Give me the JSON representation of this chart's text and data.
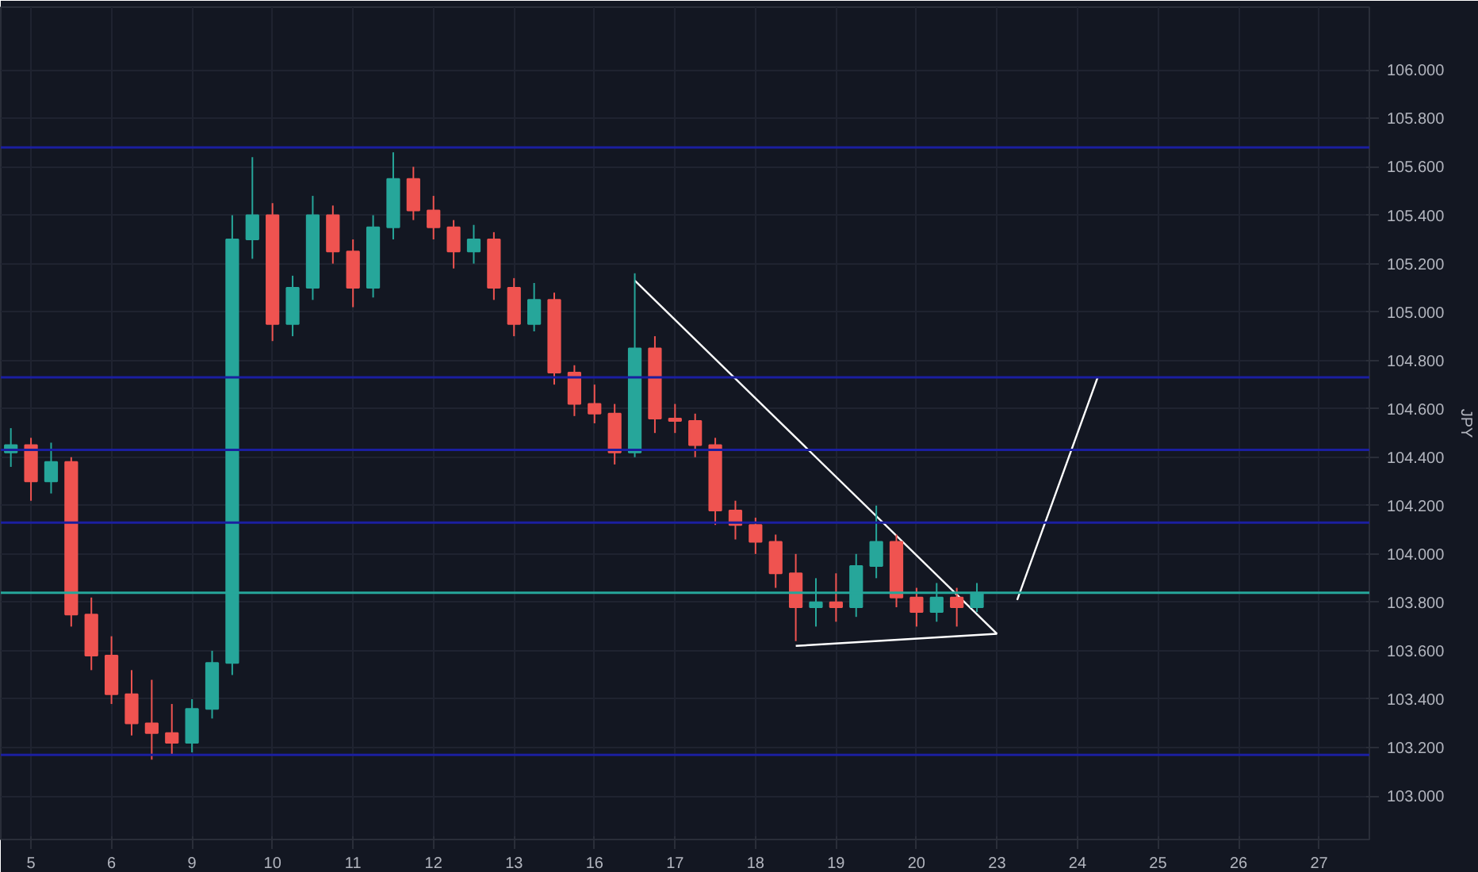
{
  "chart_data": {
    "type": "candlestick",
    "ylabel": "JPY",
    "categories": [
      null,
      "5",
      null,
      null,
      null,
      "6",
      null,
      null,
      null,
      "9",
      null,
      null,
      null,
      "10",
      null,
      null,
      null,
      "11",
      null,
      null,
      null,
      "12",
      null,
      null,
      null,
      "13",
      null,
      null,
      null,
      "16",
      null,
      null,
      null,
      "17",
      null,
      null,
      null,
      "18",
      null,
      null,
      null,
      "19",
      null,
      null,
      null,
      "20",
      null,
      null,
      null,
      "23",
      null,
      null,
      null,
      "24",
      null,
      null,
      null,
      "25",
      null,
      null,
      null,
      "26",
      null,
      null,
      null,
      "27",
      null,
      null
    ],
    "ohlc": [
      [
        104.42,
        104.52,
        104.36,
        104.45
      ],
      [
        104.45,
        104.48,
        104.22,
        104.3
      ],
      [
        104.3,
        104.46,
        104.25,
        104.38
      ],
      [
        104.38,
        104.4,
        103.7,
        103.75
      ],
      [
        103.75,
        103.82,
        103.52,
        103.58
      ],
      [
        103.58,
        103.66,
        103.38,
        103.42
      ],
      [
        103.42,
        103.52,
        103.25,
        103.3
      ],
      [
        103.3,
        103.48,
        103.15,
        103.26
      ],
      [
        103.26,
        103.38,
        103.17,
        103.22
      ],
      [
        103.22,
        103.4,
        103.18,
        103.36
      ],
      [
        103.36,
        103.6,
        103.32,
        103.55
      ],
      [
        103.55,
        105.4,
        103.5,
        105.3
      ],
      [
        105.3,
        105.64,
        105.22,
        105.4
      ],
      [
        105.4,
        105.45,
        104.88,
        104.95
      ],
      [
        104.95,
        105.15,
        104.9,
        105.1
      ],
      [
        105.1,
        105.48,
        105.05,
        105.4
      ],
      [
        105.4,
        105.44,
        105.2,
        105.25
      ],
      [
        105.25,
        105.3,
        105.02,
        105.1
      ],
      [
        105.1,
        105.4,
        105.06,
        105.35
      ],
      [
        105.35,
        105.66,
        105.3,
        105.55
      ],
      [
        105.55,
        105.6,
        105.38,
        105.42
      ],
      [
        105.42,
        105.48,
        105.3,
        105.35
      ],
      [
        105.35,
        105.38,
        105.18,
        105.25
      ],
      [
        105.25,
        105.36,
        105.2,
        105.3
      ],
      [
        105.3,
        105.33,
        105.05,
        105.1
      ],
      [
        105.1,
        105.14,
        104.9,
        104.95
      ],
      [
        104.95,
        105.12,
        104.92,
        105.05
      ],
      [
        105.05,
        105.08,
        104.7,
        104.75
      ],
      [
        104.75,
        104.78,
        104.57,
        104.62
      ],
      [
        104.62,
        104.7,
        104.54,
        104.58
      ],
      [
        104.58,
        104.62,
        104.37,
        104.42
      ],
      [
        104.42,
        105.16,
        104.4,
        104.85
      ],
      [
        104.85,
        104.9,
        104.5,
        104.56
      ],
      [
        104.56,
        104.62,
        104.5,
        104.55
      ],
      [
        104.55,
        104.58,
        104.4,
        104.45
      ],
      [
        104.45,
        104.48,
        104.12,
        104.18
      ],
      [
        104.18,
        104.22,
        104.06,
        104.12
      ],
      [
        104.12,
        104.15,
        104.0,
        104.05
      ],
      [
        104.05,
        104.08,
        103.86,
        103.92
      ],
      [
        103.92,
        104.0,
        103.64,
        103.78
      ],
      [
        103.78,
        103.9,
        103.7,
        103.8
      ],
      [
        103.8,
        103.92,
        103.72,
        103.78
      ],
      [
        103.78,
        104.0,
        103.74,
        103.95
      ],
      [
        103.95,
        104.2,
        103.9,
        104.05
      ],
      [
        104.05,
        104.08,
        103.78,
        103.82
      ],
      [
        103.82,
        103.86,
        103.7,
        103.76
      ],
      [
        103.76,
        103.88,
        103.72,
        103.82
      ],
      [
        103.82,
        103.86,
        103.7,
        103.78
      ],
      [
        103.78,
        103.88,
        103.76,
        103.84
      ],
      null,
      null,
      null,
      null,
      null,
      null,
      null,
      null,
      null,
      null,
      null,
      null,
      null,
      null,
      null,
      null,
      null,
      null,
      null
    ],
    "series": [
      {
        "type": "line",
        "color": "#ffffff",
        "values": [
          null,
          null,
          null,
          null,
          null,
          null,
          null,
          null,
          null,
          null,
          null,
          null,
          null,
          null,
          null,
          null,
          null,
          null,
          null,
          null,
          null,
          null,
          null,
          null,
          null,
          null,
          null,
          null,
          null,
          null,
          null,
          105.13,
          null,
          null,
          null,
          null,
          null,
          null,
          null,
          null,
          null,
          null,
          null,
          null,
          null,
          null,
          null,
          null,
          null,
          103.67,
          null,
          null,
          null,
          null,
          null,
          null,
          null,
          null,
          null,
          null,
          null,
          null,
          null,
          null,
          null,
          null,
          null,
          null
        ]
      },
      {
        "type": "line",
        "color": "#ffffff",
        "values": [
          null,
          null,
          null,
          null,
          null,
          null,
          null,
          null,
          null,
          null,
          null,
          null,
          null,
          null,
          null,
          null,
          null,
          null,
          null,
          null,
          null,
          null,
          null,
          null,
          null,
          null,
          null,
          null,
          null,
          null,
          null,
          null,
          null,
          null,
          null,
          null,
          null,
          null,
          null,
          103.62,
          null,
          null,
          null,
          null,
          null,
          null,
          null,
          null,
          null,
          103.67,
          null,
          null,
          null,
          null,
          null,
          null,
          null,
          null,
          null,
          null,
          null,
          null,
          null,
          null,
          null,
          null,
          null,
          null
        ]
      },
      {
        "type": "line",
        "color": "#ffffff",
        "values": [
          null,
          null,
          null,
          null,
          null,
          null,
          null,
          null,
          null,
          null,
          null,
          null,
          null,
          null,
          null,
          null,
          null,
          null,
          null,
          null,
          null,
          null,
          null,
          null,
          null,
          null,
          null,
          null,
          null,
          null,
          null,
          null,
          null,
          null,
          null,
          null,
          null,
          null,
          null,
          null,
          null,
          null,
          null,
          null,
          null,
          null,
          null,
          null,
          null,
          null,
          103.81,
          null,
          null,
          null,
          104.73,
          null,
          null,
          null,
          null,
          null,
          null,
          null,
          null,
          null,
          null,
          null,
          null,
          null
        ]
      }
    ],
    "ref_lines": [
      {
        "axis": "y",
        "value": 105.68,
        "color": "#1b1fa0"
      },
      {
        "axis": "y",
        "value": 104.73,
        "color": "#1b1fa0"
      },
      {
        "axis": "y",
        "value": 104.43,
        "color": "#1b1fa0"
      },
      {
        "axis": "y",
        "value": 104.13,
        "color": "#1b1fa0"
      },
      {
        "axis": "y",
        "value": 103.17,
        "color": "#1b1fa0"
      },
      {
        "axis": "y",
        "value": 103.84,
        "color": "#26a69a"
      }
    ],
    "ylim": [
      102.82,
      106.26
    ],
    "yticks": [
      {
        "value": 103.0,
        "label": "103.000"
      },
      {
        "value": 103.2,
        "label": "103.200"
      },
      {
        "value": 103.4,
        "label": "103.400"
      },
      {
        "value": 103.6,
        "label": "103.600"
      },
      {
        "value": 103.8,
        "label": "103.800"
      },
      {
        "value": 104.0,
        "label": "104.000"
      },
      {
        "value": 104.2,
        "label": "104.200"
      },
      {
        "value": 104.4,
        "label": "104.400"
      },
      {
        "value": 104.6,
        "label": "104.600"
      },
      {
        "value": 104.8,
        "label": "104.800"
      },
      {
        "value": 105.0,
        "label": "105.000"
      },
      {
        "value": 105.2,
        "label": "105.200"
      },
      {
        "value": 105.4,
        "label": "105.400"
      },
      {
        "value": 105.6,
        "label": "105.600"
      },
      {
        "value": 105.8,
        "label": "105.800"
      },
      {
        "value": 106.0,
        "label": "106.000"
      }
    ],
    "grid": true
  }
}
